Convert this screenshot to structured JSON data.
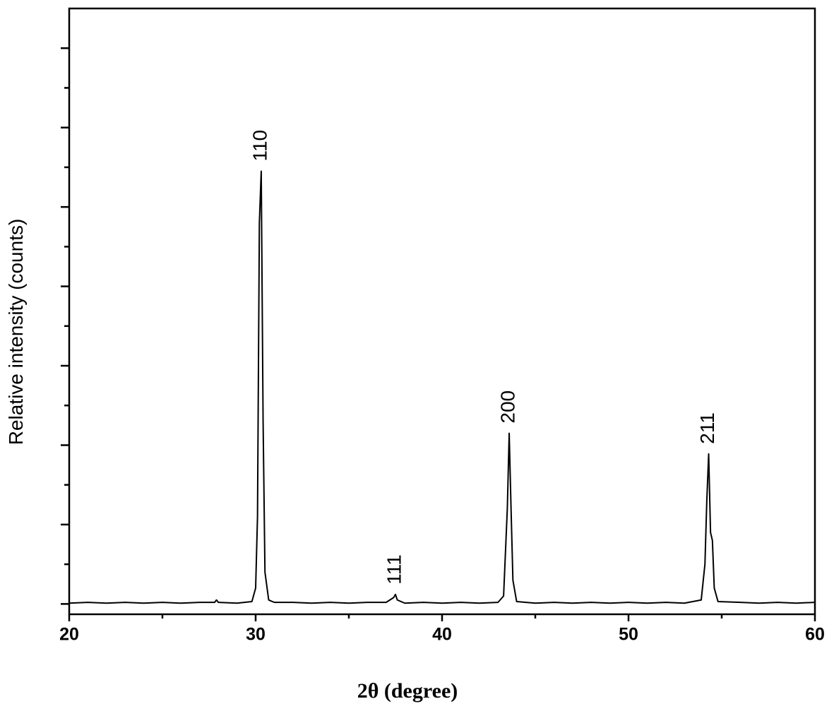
{
  "chart_data": {
    "type": "line",
    "xlabel": "2θ (degree)",
    "ylabel": "Relative intensity (counts)",
    "xlim": [
      20,
      60
    ],
    "xticks": [
      20,
      30,
      40,
      50,
      60
    ],
    "xminor_ticks": [
      25,
      35,
      45,
      55
    ],
    "ylim": [
      -0.13,
      7.5
    ],
    "yticks_unlabeled": [
      0,
      1,
      2,
      3,
      4,
      5,
      6,
      7
    ],
    "yminor_ticks": [
      0.5,
      1.5,
      2.5,
      3.5,
      4.5,
      5.5,
      6.5
    ],
    "series": [
      {
        "color": "#000000",
        "x": [
          20,
          21,
          22,
          23,
          24,
          25,
          26,
          27,
          27.8,
          27.9,
          28.0,
          29,
          29.8,
          30.0,
          30.1,
          30.2,
          30.3,
          30.4,
          30.5,
          30.7,
          31,
          32,
          33,
          34,
          35,
          36,
          37,
          37.4,
          37.5,
          37.6,
          38,
          39,
          40,
          41,
          42,
          43,
          43.3,
          43.5,
          43.6,
          43.7,
          43.8,
          44,
          45,
          46,
          47,
          48,
          49,
          50,
          51,
          52,
          53,
          53.9,
          54.1,
          54.2,
          54.3,
          54.4,
          54.5,
          54.6,
          54.8,
          56,
          57,
          58,
          59,
          60
        ],
        "values": [
          0.01,
          0.02,
          0.01,
          0.02,
          0.01,
          0.02,
          0.01,
          0.02,
          0.02,
          0.05,
          0.02,
          0.01,
          0.03,
          0.2,
          1.1,
          4.8,
          5.45,
          2.3,
          0.4,
          0.05,
          0.02,
          0.02,
          0.01,
          0.02,
          0.01,
          0.02,
          0.02,
          0.08,
          0.12,
          0.05,
          0.01,
          0.02,
          0.01,
          0.02,
          0.01,
          0.02,
          0.1,
          1.2,
          2.15,
          1.2,
          0.3,
          0.03,
          0.01,
          0.02,
          0.01,
          0.02,
          0.01,
          0.02,
          0.01,
          0.02,
          0.01,
          0.05,
          0.5,
          1.3,
          1.89,
          0.9,
          0.8,
          0.2,
          0.03,
          0.02,
          0.01,
          0.02,
          0.01,
          0.02
        ]
      }
    ],
    "annotations": [
      {
        "text": "110",
        "x": 30.3,
        "y": 5.45
      },
      {
        "text": "111",
        "x": 37.5,
        "y": 0.12
      },
      {
        "text": "200",
        "x": 43.6,
        "y": 2.15
      },
      {
        "text": "211",
        "x": 54.3,
        "y": 1.89
      }
    ]
  }
}
